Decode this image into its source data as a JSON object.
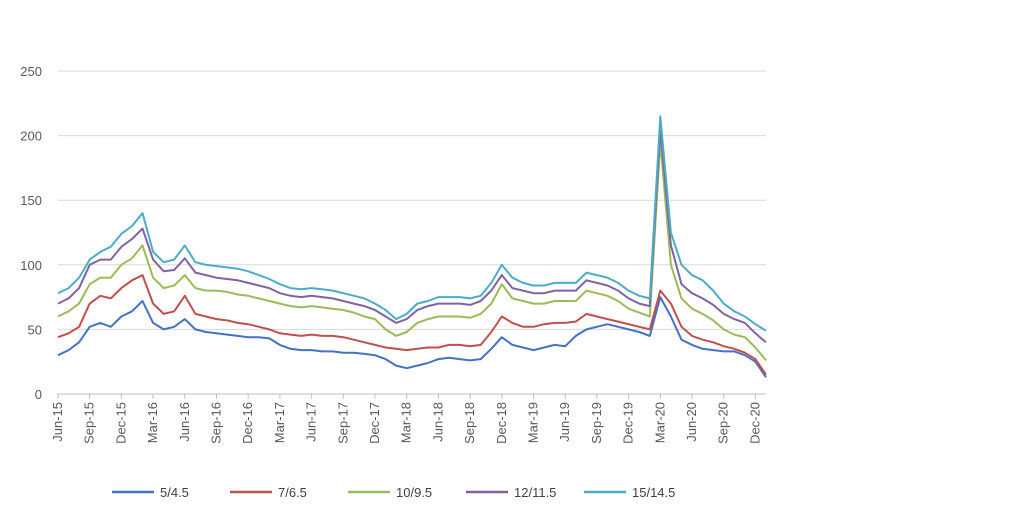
{
  "chart_data": {
    "type": "line",
    "title": "",
    "xlabel": "",
    "ylabel": "",
    "ylim": [
      0,
      250
    ],
    "yticks": [
      0,
      50,
      100,
      150,
      200,
      250
    ],
    "grid": "horizontal",
    "legend_position": "bottom",
    "x_tick_labels": [
      "Jun-15",
      "Sep-15",
      "Dec-15",
      "Mar-16",
      "Jun-16",
      "Sep-16",
      "Dec-16",
      "Mar-17",
      "Jun-17",
      "Sep-17",
      "Dec-17",
      "Mar-18",
      "Jun-18",
      "Sep-18",
      "Dec-18",
      "Mar-19",
      "Jun-19",
      "Sep-19",
      "Dec-19",
      "Mar-20",
      "Jun-20",
      "Sep-20",
      "Dec-20"
    ],
    "x": [
      "Jun-15",
      "Jul-15",
      "Aug-15",
      "Sep-15",
      "Oct-15",
      "Nov-15",
      "Dec-15",
      "Jan-16",
      "Feb-16",
      "Mar-16",
      "Apr-16",
      "May-16",
      "Jun-16",
      "Jul-16",
      "Aug-16",
      "Sep-16",
      "Oct-16",
      "Nov-16",
      "Dec-16",
      "Jan-17",
      "Feb-17",
      "Mar-17",
      "Apr-17",
      "May-17",
      "Jun-17",
      "Jul-17",
      "Aug-17",
      "Sep-17",
      "Oct-17",
      "Nov-17",
      "Dec-17",
      "Jan-18",
      "Feb-18",
      "Mar-18",
      "Apr-18",
      "May-18",
      "Jun-18",
      "Jul-18",
      "Aug-18",
      "Sep-18",
      "Oct-18",
      "Nov-18",
      "Dec-18",
      "Jan-19",
      "Feb-19",
      "Mar-19",
      "Apr-19",
      "May-19",
      "Jun-19",
      "Jul-19",
      "Aug-19",
      "Sep-19",
      "Oct-19",
      "Nov-19",
      "Dec-19",
      "Jan-20",
      "Feb-20",
      "Mar-20",
      "Apr-20",
      "May-20",
      "Jun-20",
      "Jul-20",
      "Aug-20",
      "Sep-20",
      "Oct-20",
      "Nov-20",
      "Dec-20",
      "Jan-21"
    ],
    "series": [
      {
        "name": "5/4.5",
        "color": "#4472c4",
        "values": [
          30,
          34,
          40,
          52,
          55,
          52,
          60,
          64,
          72,
          55,
          50,
          52,
          58,
          50,
          48,
          47,
          46,
          45,
          44,
          44,
          43,
          38,
          35,
          34,
          34,
          33,
          33,
          32,
          32,
          31,
          30,
          27,
          22,
          20,
          22,
          24,
          27,
          28,
          27,
          26,
          27,
          35,
          44,
          38,
          36,
          34,
          36,
          38,
          37,
          45,
          50,
          52,
          54,
          52,
          50,
          48,
          45,
          75,
          60,
          42,
          38,
          35,
          34,
          33,
          33,
          30,
          25,
          13
        ]
      },
      {
        "name": "7/6.5",
        "color": "#c0504d",
        "values": [
          44,
          47,
          52,
          70,
          76,
          74,
          82,
          88,
          92,
          70,
          62,
          64,
          76,
          62,
          60,
          58,
          57,
          55,
          54,
          52,
          50,
          47,
          46,
          45,
          46,
          45,
          45,
          44,
          42,
          40,
          38,
          36,
          35,
          34,
          35,
          36,
          36,
          38,
          38,
          37,
          38,
          48,
          60,
          55,
          52,
          52,
          54,
          55,
          55,
          56,
          62,
          60,
          58,
          56,
          54,
          52,
          50,
          80,
          70,
          52,
          45,
          42,
          40,
          37,
          35,
          32,
          27,
          15
        ]
      },
      {
        "name": "10/9.5",
        "color": "#9bbb59",
        "values": [
          60,
          64,
          70,
          85,
          90,
          90,
          100,
          105,
          115,
          90,
          82,
          84,
          92,
          82,
          80,
          80,
          79,
          77,
          76,
          74,
          72,
          70,
          68,
          67,
          68,
          67,
          66,
          65,
          63,
          60,
          58,
          50,
          45,
          48,
          55,
          58,
          60,
          60,
          60,
          59,
          62,
          70,
          85,
          74,
          72,
          70,
          70,
          72,
          72,
          72,
          80,
          78,
          76,
          72,
          66,
          63,
          60,
          195,
          100,
          74,
          66,
          62,
          57,
          50,
          46,
          44,
          36,
          26
        ]
      },
      {
        "name": "12/11.5",
        "color": "#8064a2",
        "values": [
          70,
          74,
          82,
          100,
          104,
          104,
          114,
          120,
          128,
          104,
          95,
          96,
          105,
          94,
          92,
          90,
          89,
          88,
          86,
          84,
          82,
          78,
          76,
          75,
          76,
          75,
          74,
          72,
          70,
          68,
          65,
          60,
          55,
          58,
          65,
          68,
          70,
          70,
          70,
          69,
          72,
          80,
          92,
          82,
          80,
          78,
          78,
          80,
          80,
          80,
          88,
          86,
          84,
          80,
          74,
          70,
          68,
          205,
          115,
          85,
          78,
          74,
          69,
          62,
          58,
          55,
          47,
          40
        ]
      },
      {
        "name": "15/14.5",
        "color": "#4bacc6",
        "values": [
          78,
          82,
          90,
          104,
          110,
          114,
          124,
          130,
          140,
          110,
          102,
          104,
          115,
          102,
          100,
          99,
          98,
          97,
          95,
          92,
          89,
          85,
          82,
          81,
          82,
          81,
          80,
          78,
          76,
          74,
          70,
          65,
          58,
          62,
          70,
          72,
          75,
          75,
          75,
          74,
          76,
          86,
          100,
          90,
          86,
          84,
          84,
          86,
          86,
          86,
          94,
          92,
          90,
          86,
          80,
          76,
          74,
          215,
          125,
          100,
          92,
          88,
          80,
          70,
          64,
          60,
          54,
          49
        ]
      }
    ]
  }
}
